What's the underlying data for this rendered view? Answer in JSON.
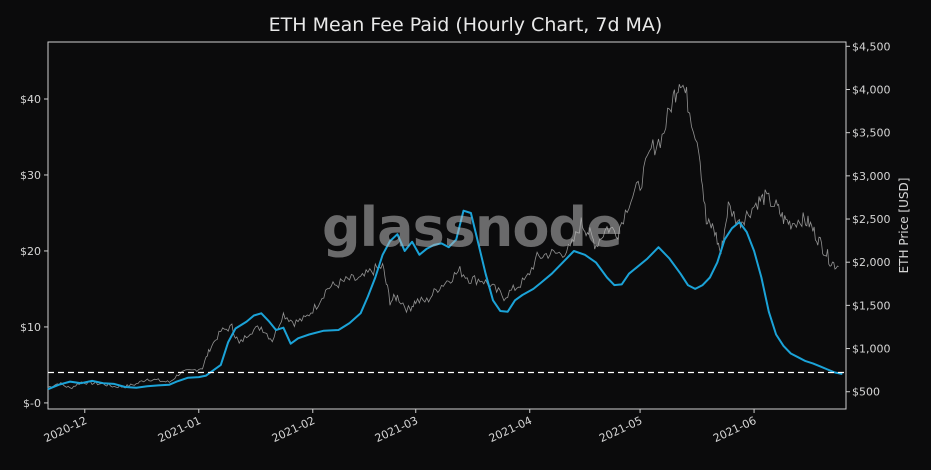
{
  "chart_data": {
    "type": "line",
    "title": "ETH Mean Fee Paid (Hourly Chart, 7d MA)",
    "watermark": "glassnode",
    "y_left": {
      "label": "",
      "ticks": [
        "$-0",
        "$10",
        "$20",
        "$30",
        "$40"
      ],
      "tick_values": [
        0,
        10,
        20,
        30,
        40
      ],
      "range": [
        -0.8,
        47.5
      ]
    },
    "y_right": {
      "label": "ETH Price [USD]",
      "ticks": [
        "$500",
        "$1,000",
        "$1,500",
        "$2,000",
        "$2,500",
        "$3,000",
        "$3,500",
        "$4,000",
        "$4,500"
      ],
      "tick_values": [
        500,
        1000,
        1500,
        2000,
        2500,
        3000,
        3500,
        4000,
        4500
      ],
      "range": [
        300,
        4550
      ]
    },
    "x_axis": {
      "ticks": [
        "2020-12",
        "2021-01",
        "2021-02",
        "2021-03",
        "2021-04",
        "2021-05",
        "2021-06"
      ],
      "tick_dates": [
        "2020-12-01",
        "2021-01-01",
        "2021-02-01",
        "2021-03-01",
        "2021-04-01",
        "2021-05-01",
        "2021-06-01"
      ],
      "range": [
        "2020-11-21",
        "2021-06-26"
      ]
    },
    "reference_line": {
      "axis": "left",
      "value": 4.0,
      "style": "dashed",
      "color": "#ffffff"
    },
    "series": [
      {
        "name": "",
        "axis": "left",
        "color": "#1ba3d8",
        "points": [
          [
            "2020-11-21",
            1.8
          ],
          [
            "2020-11-24",
            2.4
          ],
          [
            "2020-11-27",
            2.8
          ],
          [
            "2020-11-30",
            2.6
          ],
          [
            "2020-12-03",
            2.9
          ],
          [
            "2020-12-06",
            2.6
          ],
          [
            "2020-12-09",
            2.5
          ],
          [
            "2020-12-12",
            2.1
          ],
          [
            "2020-12-15",
            2.0
          ],
          [
            "2020-12-18",
            2.2
          ],
          [
            "2020-12-21",
            2.3
          ],
          [
            "2020-12-24",
            2.4
          ],
          [
            "2020-12-26",
            2.8
          ],
          [
            "2020-12-29",
            3.3
          ],
          [
            "2021-01-01",
            3.4
          ],
          [
            "2021-01-03",
            3.6
          ],
          [
            "2021-01-05",
            4.3
          ],
          [
            "2021-01-07",
            5.0
          ],
          [
            "2021-01-09",
            8.0
          ],
          [
            "2021-01-11",
            9.8
          ],
          [
            "2021-01-14",
            10.7
          ],
          [
            "2021-01-16",
            11.5
          ],
          [
            "2021-01-18",
            11.8
          ],
          [
            "2021-01-20",
            10.8
          ],
          [
            "2021-01-22",
            9.6
          ],
          [
            "2021-01-24",
            9.9
          ],
          [
            "2021-01-26",
            7.8
          ],
          [
            "2021-01-28",
            8.5
          ],
          [
            "2021-01-31",
            9.0
          ],
          [
            "2021-02-04",
            9.5
          ],
          [
            "2021-02-08",
            9.6
          ],
          [
            "2021-02-11",
            10.5
          ],
          [
            "2021-02-14",
            11.8
          ],
          [
            "2021-02-16",
            14.0
          ],
          [
            "2021-02-18",
            16.5
          ],
          [
            "2021-02-20",
            19.5
          ],
          [
            "2021-02-22",
            21.3
          ],
          [
            "2021-02-24",
            22.2
          ],
          [
            "2021-02-26",
            20.0
          ],
          [
            "2021-02-28",
            21.2
          ],
          [
            "2021-03-02",
            19.5
          ],
          [
            "2021-03-04",
            20.3
          ],
          [
            "2021-03-06",
            20.8
          ],
          [
            "2021-03-08",
            21.0
          ],
          [
            "2021-03-10",
            20.5
          ],
          [
            "2021-03-12",
            21.5
          ],
          [
            "2021-03-14",
            25.3
          ],
          [
            "2021-03-16",
            25.0
          ],
          [
            "2021-03-18",
            21.0
          ],
          [
            "2021-03-20",
            17.0
          ],
          [
            "2021-03-22",
            13.5
          ],
          [
            "2021-03-24",
            12.1
          ],
          [
            "2021-03-26",
            12.0
          ],
          [
            "2021-03-28",
            13.5
          ],
          [
            "2021-03-30",
            14.2
          ],
          [
            "2021-04-02",
            15.0
          ],
          [
            "2021-04-04",
            15.8
          ],
          [
            "2021-04-07",
            17.0
          ],
          [
            "2021-04-10",
            18.5
          ],
          [
            "2021-04-13",
            20.0
          ],
          [
            "2021-04-16",
            19.5
          ],
          [
            "2021-04-19",
            18.5
          ],
          [
            "2021-04-22",
            16.5
          ],
          [
            "2021-04-24",
            15.5
          ],
          [
            "2021-04-26",
            15.6
          ],
          [
            "2021-04-28",
            17.0
          ],
          [
            "2021-04-30",
            17.8
          ],
          [
            "2021-05-03",
            19.0
          ],
          [
            "2021-05-06",
            20.5
          ],
          [
            "2021-05-09",
            19.0
          ],
          [
            "2021-05-12",
            17.0
          ],
          [
            "2021-05-14",
            15.5
          ],
          [
            "2021-05-16",
            15.0
          ],
          [
            "2021-05-18",
            15.5
          ],
          [
            "2021-05-20",
            16.5
          ],
          [
            "2021-05-22",
            18.5
          ],
          [
            "2021-05-24",
            21.5
          ],
          [
            "2021-05-26",
            23.0
          ],
          [
            "2021-05-28",
            23.8
          ],
          [
            "2021-05-30",
            22.5
          ],
          [
            "2021-06-01",
            20.0
          ],
          [
            "2021-06-03",
            16.5
          ],
          [
            "2021-06-05",
            12.0
          ],
          [
            "2021-06-07",
            9.0
          ],
          [
            "2021-06-09",
            7.5
          ],
          [
            "2021-06-11",
            6.5
          ],
          [
            "2021-06-13",
            6.0
          ],
          [
            "2021-06-15",
            5.5
          ],
          [
            "2021-06-17",
            5.2
          ],
          [
            "2021-06-19",
            4.8
          ],
          [
            "2021-06-21",
            4.4
          ],
          [
            "2021-06-23",
            4.0
          ],
          [
            "2021-06-25",
            3.8
          ]
        ]
      },
      {
        "name": "",
        "axis": "right",
        "color": "#9a9a9a",
        "points": [
          [
            "2020-11-21",
            550
          ],
          [
            "2020-11-24",
            600
          ],
          [
            "2020-11-27",
            540
          ],
          [
            "2020-11-30",
            610
          ],
          [
            "2020-12-03",
            600
          ],
          [
            "2020-12-06",
            590
          ],
          [
            "2020-12-09",
            560
          ],
          [
            "2020-12-12",
            560
          ],
          [
            "2020-12-15",
            590
          ],
          [
            "2020-12-18",
            650
          ],
          [
            "2020-12-21",
            630
          ],
          [
            "2020-12-24",
            610
          ],
          [
            "2020-12-27",
            720
          ],
          [
            "2020-12-30",
            740
          ],
          [
            "2021-01-02",
            780
          ],
          [
            "2021-01-04",
            1000
          ],
          [
            "2021-01-07",
            1200
          ],
          [
            "2021-01-10",
            1250
          ],
          [
            "2021-01-12",
            1050
          ],
          [
            "2021-01-15",
            1200
          ],
          [
            "2021-01-18",
            1250
          ],
          [
            "2021-01-21",
            1100
          ],
          [
            "2021-01-24",
            1400
          ],
          [
            "2021-01-27",
            1300
          ],
          [
            "2021-01-30",
            1350
          ],
          [
            "2021-02-02",
            1500
          ],
          [
            "2021-02-05",
            1700
          ],
          [
            "2021-02-08",
            1750
          ],
          [
            "2021-02-11",
            1800
          ],
          [
            "2021-02-14",
            1800
          ],
          [
            "2021-02-17",
            1900
          ],
          [
            "2021-02-20",
            1950
          ],
          [
            "2021-02-22",
            1550
          ],
          [
            "2021-02-24",
            1600
          ],
          [
            "2021-02-27",
            1450
          ],
          [
            "2021-03-01",
            1550
          ],
          [
            "2021-03-04",
            1550
          ],
          [
            "2021-03-07",
            1700
          ],
          [
            "2021-03-10",
            1800
          ],
          [
            "2021-03-13",
            1900
          ],
          [
            "2021-03-16",
            1800
          ],
          [
            "2021-03-19",
            1800
          ],
          [
            "2021-03-22",
            1700
          ],
          [
            "2021-03-25",
            1600
          ],
          [
            "2021-03-28",
            1700
          ],
          [
            "2021-03-31",
            1800
          ],
          [
            "2021-04-03",
            2050
          ],
          [
            "2021-04-06",
            2100
          ],
          [
            "2021-04-09",
            2100
          ],
          [
            "2021-04-12",
            2150
          ],
          [
            "2021-04-15",
            2450
          ],
          [
            "2021-04-17",
            2350
          ],
          [
            "2021-04-19",
            2200
          ],
          [
            "2021-04-22",
            2400
          ],
          [
            "2021-04-25",
            2350
          ],
          [
            "2021-04-28",
            2700
          ],
          [
            "2021-05-01",
            2900
          ],
          [
            "2021-05-04",
            3300
          ],
          [
            "2021-05-07",
            3450
          ],
          [
            "2021-05-10",
            3900
          ],
          [
            "2021-05-12",
            4150
          ],
          [
            "2021-05-14",
            3850
          ],
          [
            "2021-05-17",
            3350
          ],
          [
            "2021-05-19",
            2450
          ],
          [
            "2021-05-21",
            2400
          ],
          [
            "2021-05-23",
            2100
          ],
          [
            "2021-05-25",
            2650
          ],
          [
            "2021-05-28",
            2450
          ],
          [
            "2021-05-30",
            2550
          ],
          [
            "2021-06-02",
            2700
          ],
          [
            "2021-06-04",
            2750
          ],
          [
            "2021-06-07",
            2650
          ],
          [
            "2021-06-09",
            2500
          ],
          [
            "2021-06-11",
            2450
          ],
          [
            "2021-06-14",
            2500
          ],
          [
            "2021-06-16",
            2450
          ],
          [
            "2021-06-18",
            2300
          ],
          [
            "2021-06-20",
            2150
          ],
          [
            "2021-06-22",
            2000
          ],
          [
            "2021-06-24",
            1950
          ]
        ]
      }
    ],
    "grid": false,
    "legend": "none"
  }
}
